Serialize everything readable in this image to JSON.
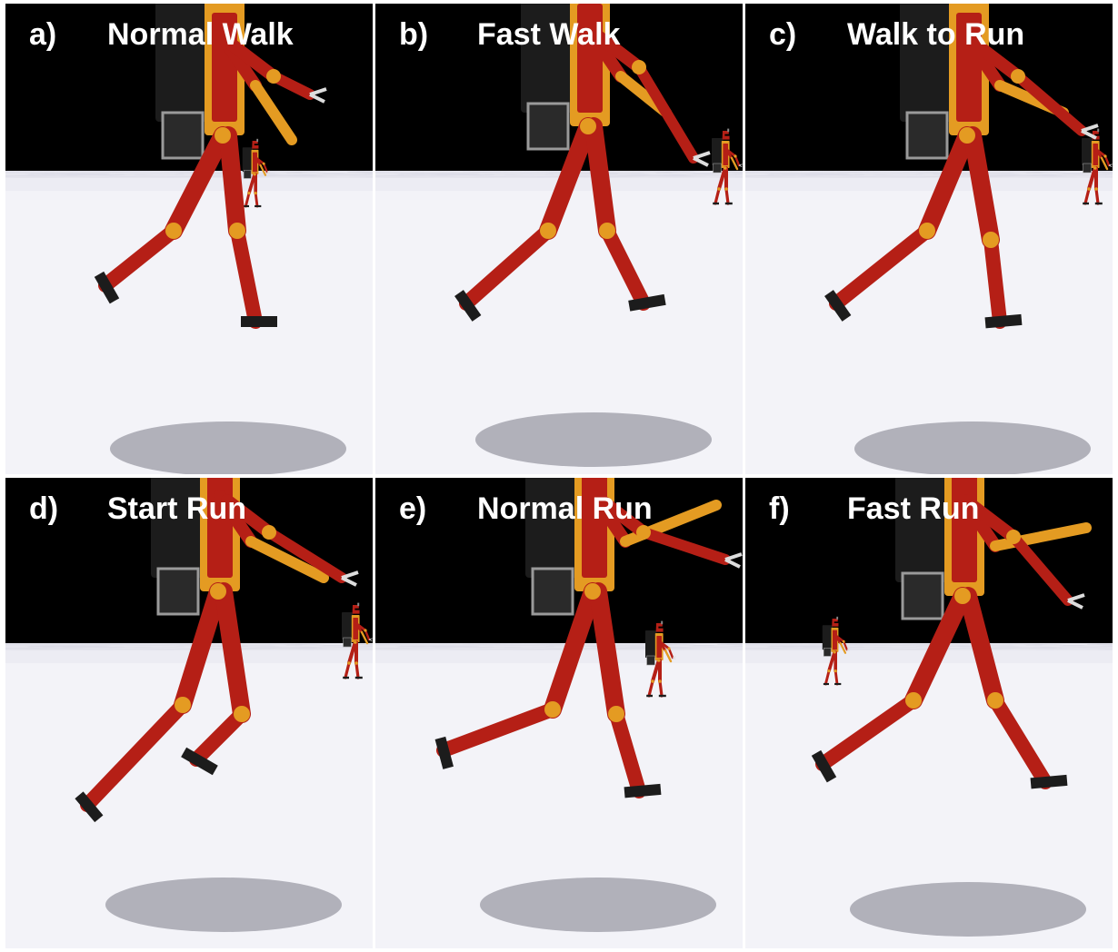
{
  "figure": {
    "panels": [
      {
        "letter": "a)",
        "title": "Normal Walk",
        "background_robot": "small"
      },
      {
        "letter": "b)",
        "title": "Fast Walk",
        "background_robot": "right"
      },
      {
        "letter": "c)",
        "title": "Walk to Run",
        "background_robot": "right"
      },
      {
        "letter": "d)",
        "title": "Start Run",
        "background_robot": "right"
      },
      {
        "letter": "e)",
        "title": "Normal Run",
        "background_robot": "center"
      },
      {
        "letter": "f)",
        "title": "Fast Run",
        "background_robot": "left"
      }
    ],
    "colors": {
      "sky": "#000000",
      "floor_light": "#f3f3f8",
      "floor_dark": "#b6b6c6",
      "robot_red": "#b51f16",
      "robot_orange": "#e49b22",
      "robot_black": "#1c1c1c",
      "shadow": "#7a7a86"
    }
  }
}
